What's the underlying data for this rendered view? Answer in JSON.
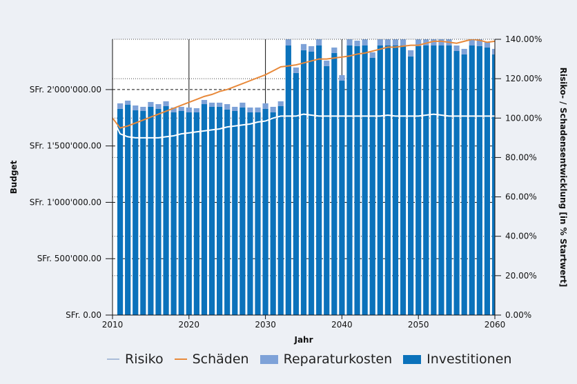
{
  "chart_data": {
    "type": "bar",
    "xlabel": "Jahr",
    "ylabel": "Budget",
    "y2label": "Risiko- / Schadensentwicklung [in % Startwert]",
    "xlim": [
      2010,
      2060
    ],
    "ylim": [
      0,
      2446000
    ],
    "y2lim": [
      0,
      140
    ],
    "x_ticks": [
      "2010",
      "2020",
      "2030",
      "2040",
      "2050",
      "2060"
    ],
    "y_ticks": [
      {
        "value": 0,
        "label": "SFr. 0.00"
      },
      {
        "value": 500000,
        "label": "SFr. 500'000.00"
      },
      {
        "value": 1000000,
        "label": "SFr. 1'000'000.00"
      },
      {
        "value": 1500000,
        "label": "SFr. 1'500'000.00"
      },
      {
        "value": 2000000,
        "label": "SFr. 2'000'000.00"
      }
    ],
    "y2_ticks": [
      {
        "value": 0,
        "label": "0.00%"
      },
      {
        "value": 20,
        "label": "20.00%"
      },
      {
        "value": 40,
        "label": "40.00%"
      },
      {
        "value": 60,
        "label": "60.00%"
      },
      {
        "value": 80,
        "label": "80.00%"
      },
      {
        "value": 100,
        "label": "100.00%"
      },
      {
        "value": 120,
        "label": "120.00%"
      },
      {
        "value": 140,
        "label": "140.00%"
      }
    ],
    "grid": true,
    "legend_placement": "bottom",
    "bar_years": [
      2011,
      2012,
      2013,
      2014,
      2015,
      2016,
      2017,
      2018,
      2019,
      2020,
      2021,
      2022,
      2023,
      2024,
      2025,
      2026,
      2027,
      2028,
      2029,
      2030,
      2031,
      2032,
      2033,
      2034,
      2035,
      2036,
      2037,
      2038,
      2039,
      2040,
      2041,
      2042,
      2043,
      2044,
      2045,
      2046,
      2047,
      2048,
      2049,
      2050,
      2051,
      2052,
      2053,
      2054,
      2055,
      2056,
      2057,
      2058,
      2059,
      2060
    ],
    "series": [
      {
        "name": "Investitionen",
        "kind": "bar",
        "axis": "left",
        "color": "#0b72bb",
        "values": [
          1829000,
          1865000,
          1816000,
          1810000,
          1847000,
          1829000,
          1853000,
          1798000,
          1810000,
          1798000,
          1798000,
          1871000,
          1847000,
          1847000,
          1823000,
          1810000,
          1841000,
          1798000,
          1798000,
          1829000,
          1798000,
          1853000,
          2391000,
          2147000,
          2349000,
          2336000,
          2391000,
          2208000,
          2324000,
          2079000,
          2391000,
          2385000,
          2391000,
          2281000,
          2391000,
          2391000,
          2391000,
          2391000,
          2294000,
          2385000,
          2391000,
          2391000,
          2391000,
          2391000,
          2342000,
          2312000,
          2391000,
          2385000,
          2373000,
          2312000
        ]
      },
      {
        "name": "Reparaturkosten",
        "kind": "bar",
        "axis": "left",
        "stacked": true,
        "color": "#7ea2d8",
        "values": [
          49000,
          37000,
          43000,
          37000,
          43000,
          42000,
          43000,
          43000,
          37000,
          43000,
          37000,
          37000,
          37000,
          37000,
          48000,
          37000,
          43000,
          43000,
          43000,
          49000,
          49000,
          43000,
          60000,
          49000,
          55000,
          49000,
          60000,
          49000,
          49000,
          49000,
          60000,
          49000,
          60000,
          49000,
          60000,
          60000,
          60000,
          60000,
          55000,
          60000,
          60000,
          60000,
          60000,
          60000,
          49000,
          49000,
          60000,
          61000,
          49000,
          49000
        ]
      },
      {
        "name": "Risiko",
        "kind": "line",
        "axis": "right",
        "color": "#a9bcd9",
        "x": [
          2010,
          2011,
          2012,
          2013,
          2014,
          2015,
          2016,
          2017,
          2018,
          2019,
          2020,
          2021,
          2022,
          2023,
          2024,
          2025,
          2026,
          2027,
          2028,
          2029,
          2030,
          2031,
          2032,
          2033,
          2034,
          2035,
          2036,
          2037,
          2038,
          2039,
          2040,
          2041,
          2042,
          2043,
          2044,
          2045,
          2046,
          2047,
          2048,
          2049,
          2050,
          2051,
          2052,
          2053,
          2054,
          2055,
          2056,
          2057,
          2058,
          2059,
          2060
        ],
        "values": [
          100,
          92,
          90.5,
          90,
          90,
          90,
          90,
          90.5,
          91,
          92,
          92.5,
          93,
          93.5,
          94,
          94.5,
          95.5,
          96,
          96.5,
          97,
          98,
          98.5,
          100,
          101,
          101,
          101,
          102,
          101.5,
          101,
          101,
          101,
          101,
          101,
          101,
          101,
          101,
          101,
          101.5,
          101,
          101,
          101,
          101,
          101.5,
          102,
          101.5,
          101,
          101,
          101,
          101,
          101,
          101,
          101
        ]
      },
      {
        "name": "Schäden",
        "kind": "line",
        "axis": "right",
        "color": "#e8893a",
        "x": [
          2010,
          2011,
          2012,
          2013,
          2014,
          2015,
          2016,
          2017,
          2018,
          2019,
          2020,
          2021,
          2022,
          2023,
          2024,
          2025,
          2026,
          2027,
          2028,
          2029,
          2030,
          2031,
          2032,
          2033,
          2034,
          2035,
          2036,
          2037,
          2038,
          2039,
          2040,
          2041,
          2042,
          2043,
          2044,
          2045,
          2046,
          2047,
          2048,
          2049,
          2050,
          2051,
          2052,
          2053,
          2054,
          2055,
          2056,
          2057,
          2058,
          2059,
          2060
        ],
        "values": [
          100,
          95,
          96,
          97.5,
          99,
          100.5,
          102,
          103.5,
          105,
          106.5,
          108,
          109.5,
          111,
          112,
          113.5,
          114.5,
          116,
          117.5,
          119,
          120.5,
          122,
          124,
          126,
          126.5,
          127,
          128,
          129,
          130,
          130,
          130.5,
          131,
          131.5,
          132.5,
          133,
          134,
          135,
          136,
          136,
          136.5,
          137,
          137,
          138,
          139,
          139,
          138.5,
          138,
          139,
          140,
          139.5,
          138.5,
          139
        ]
      }
    ]
  },
  "legend": [
    {
      "label": "Risiko",
      "type": "line",
      "color": "#a9bcd9"
    },
    {
      "label": "Schäden",
      "type": "line",
      "color": "#e8893a"
    },
    {
      "label": "Reparaturkosten",
      "type": "box",
      "color": "#7ea2d8"
    },
    {
      "label": "Investitionen",
      "type": "box",
      "color": "#0b72bb"
    }
  ]
}
